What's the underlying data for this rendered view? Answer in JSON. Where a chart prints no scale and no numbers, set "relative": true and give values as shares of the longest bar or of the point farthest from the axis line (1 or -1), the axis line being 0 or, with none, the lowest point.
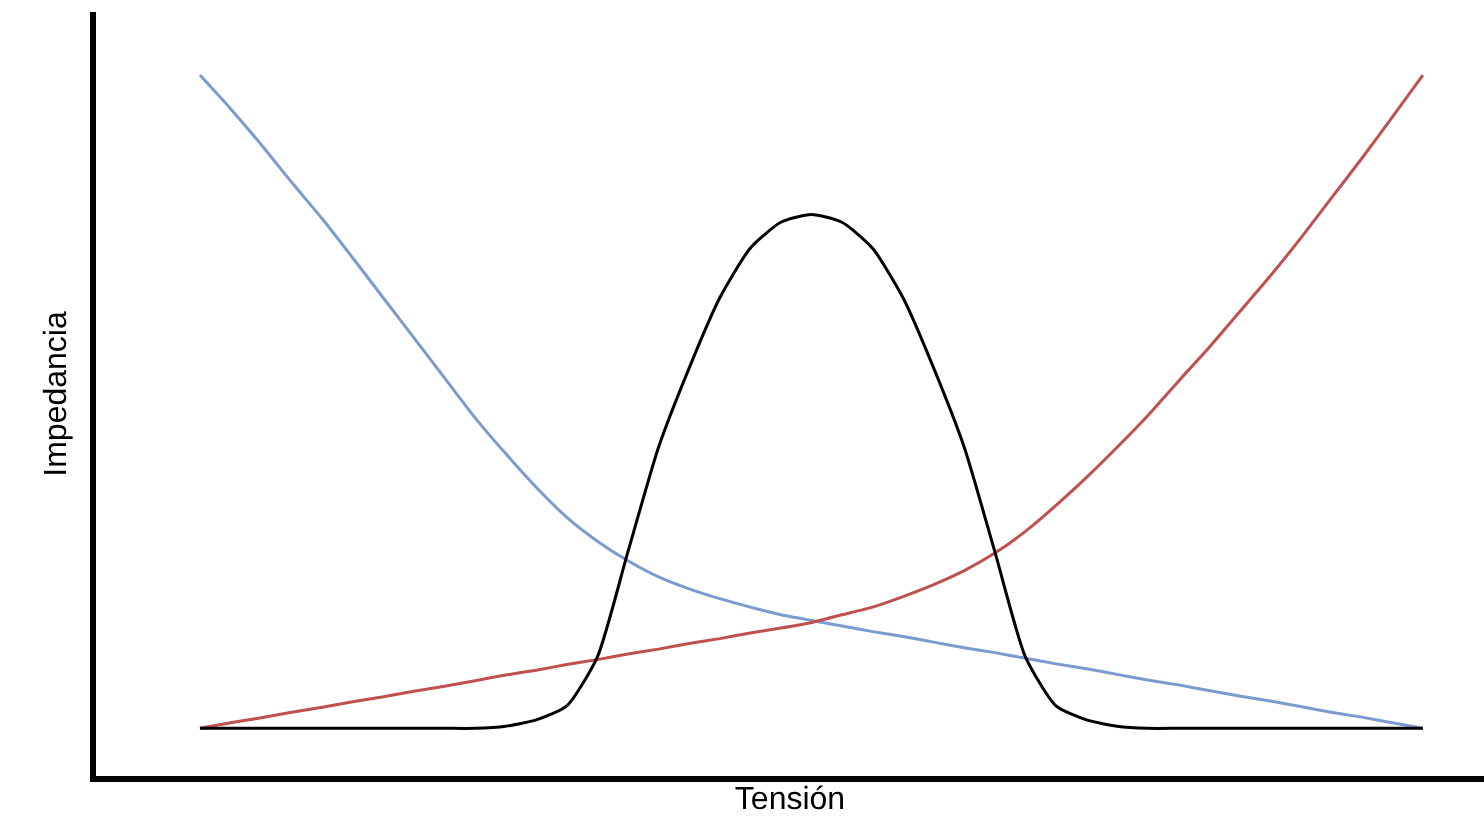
{
  "chart_data": {
    "type": "line",
    "relative": true,
    "xlabel": "Tensión",
    "ylabel": "Impedancia",
    "marker": "none",
    "line_style": "solid",
    "categories": [
      null,
      null,
      null,
      null,
      null,
      null,
      null,
      null,
      null,
      null,
      null,
      null,
      null,
      null,
      null,
      null,
      null,
      null,
      null,
      null,
      null,
      null,
      null,
      null,
      null,
      null,
      null,
      null,
      null,
      null,
      null,
      null,
      null,
      null,
      null,
      null,
      null,
      null,
      null,
      null,
      null
    ],
    "series": [
      {
        "color": "#7b9bd0",
        "values": [
          1.0,
          0.952,
          0.901,
          0.847,
          0.795,
          0.739,
          0.682,
          0.625,
          0.568,
          0.511,
          0.46,
          0.412,
          0.369,
          0.335,
          0.307,
          0.284,
          0.267,
          0.253,
          0.241,
          0.23,
          0.222,
          0.214,
          0.206,
          0.199,
          0.191,
          0.183,
          0.176,
          0.168,
          0.16,
          0.153,
          0.145,
          0.137,
          0.13,
          0.122,
          0.114,
          0.107,
          0.099,
          0.091,
          0.084,
          0.076,
          0.068
        ]
      },
      {
        "color": "#c0504d",
        "values": [
          0.068,
          0.076,
          0.083,
          0.091,
          0.098,
          0.106,
          0.113,
          0.121,
          0.128,
          0.136,
          0.144,
          0.151,
          0.159,
          0.166,
          0.174,
          0.181,
          0.189,
          0.196,
          0.204,
          0.211,
          0.219,
          0.23,
          0.241,
          0.256,
          0.273,
          0.293,
          0.318,
          0.349,
          0.386,
          0.426,
          0.469,
          0.514,
          0.563,
          0.611,
          0.662,
          0.713,
          0.767,
          0.824,
          0.881,
          0.94,
          1.0
        ]
      },
      {
        "color": "#000000",
        "values": [
          0.068,
          0.068,
          0.068,
          0.068,
          0.068,
          0.068,
          0.068,
          0.068,
          0.068,
          0.068,
          0.071,
          0.08,
          0.1,
          0.17,
          0.32,
          0.469,
          0.582,
          0.682,
          0.753,
          0.79,
          0.801,
          0.79,
          0.753,
          0.682,
          0.582,
          0.469,
          0.32,
          0.17,
          0.1,
          0.08,
          0.071,
          0.068,
          0.068,
          0.068,
          0.068,
          0.068,
          0.068,
          0.068,
          0.068,
          0.068,
          0.068
        ]
      }
    ]
  }
}
